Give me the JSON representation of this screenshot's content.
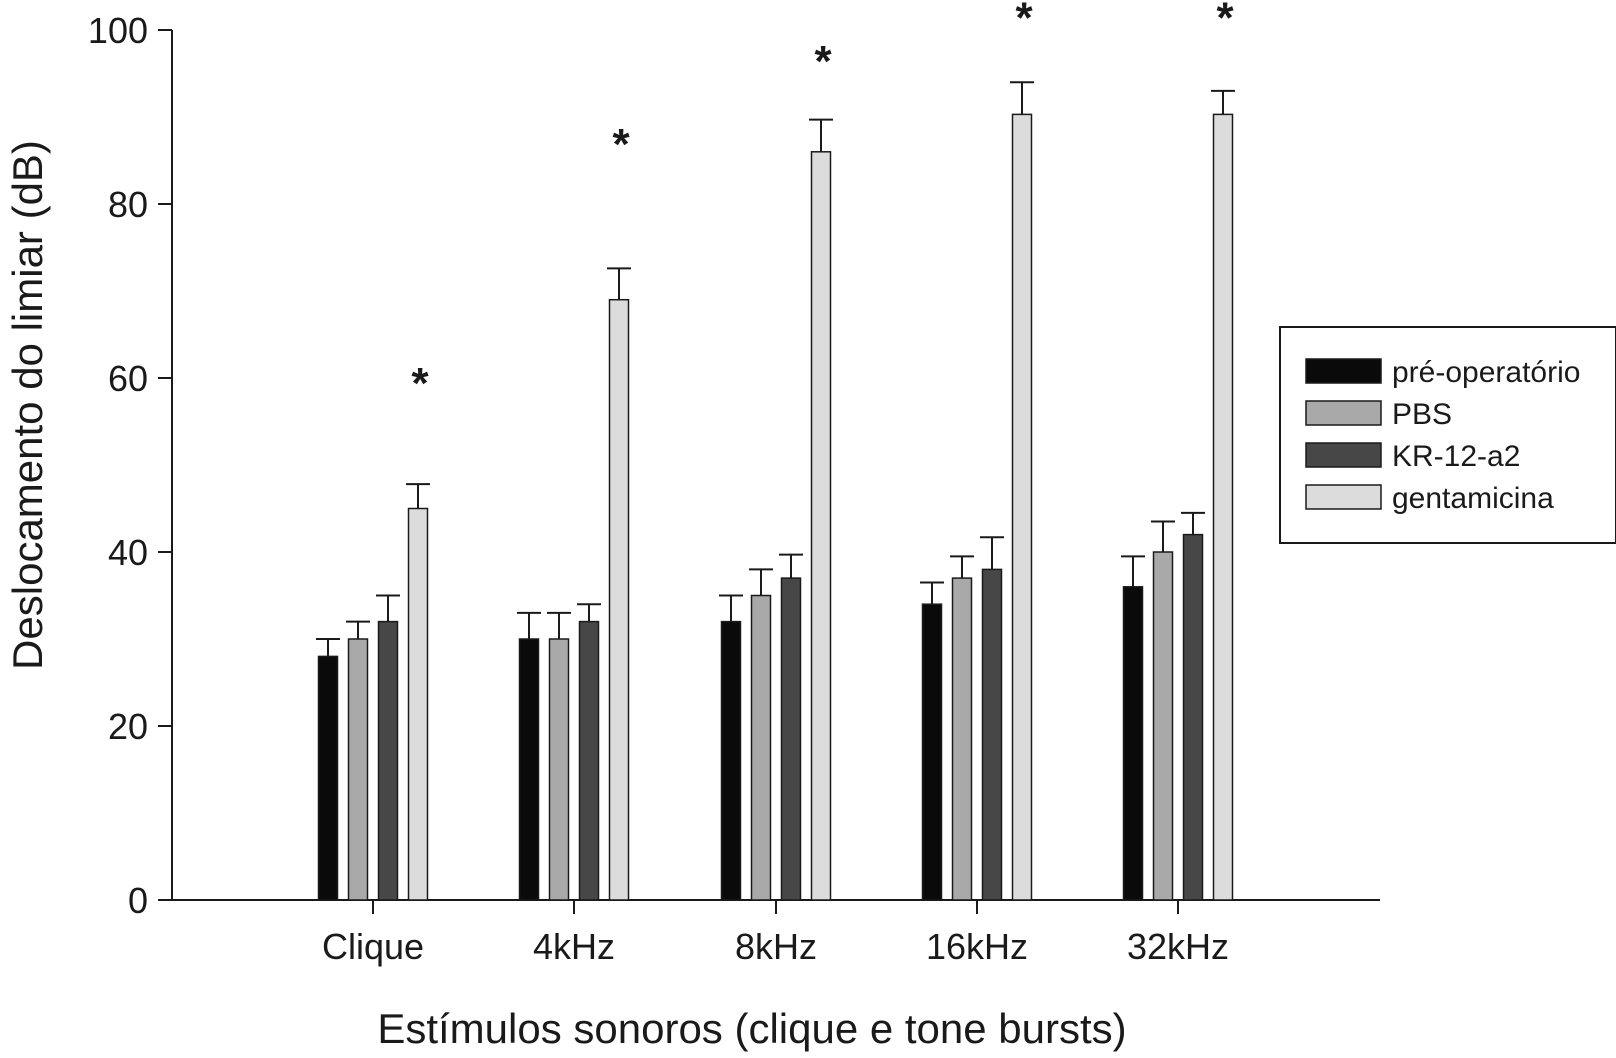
{
  "chart_data": {
    "type": "bar",
    "xlabel": "Estímulos sonoros (clique e tone bursts)",
    "ylabel": "Deslocamento do limiar (dB)",
    "ylim": [
      0,
      100
    ],
    "yticks": [
      0,
      20,
      40,
      60,
      80,
      100
    ],
    "categories": [
      "Clique",
      "4kHz",
      "8kHz",
      "16kHz",
      "32kHz"
    ],
    "series": [
      {
        "name": "pré-operatório",
        "color": "#0a0a0a",
        "values": [
          28,
          30,
          32,
          34,
          36
        ],
        "errors": [
          2,
          3,
          3,
          2.5,
          3.5
        ]
      },
      {
        "name": "PBS",
        "color": "#a9a9a9",
        "values": [
          30,
          30,
          35,
          37,
          40
        ],
        "errors": [
          2,
          3,
          3,
          2.5,
          3.5
        ]
      },
      {
        "name": "KR-12-a2",
        "color": "#474747",
        "values": [
          32,
          32,
          37,
          38,
          42
        ],
        "errors": [
          3,
          2,
          2.7,
          3.7,
          2.5
        ]
      },
      {
        "name": "gentamicina",
        "color": "#dcdcdc",
        "values": [
          45,
          69,
          86,
          90.3,
          90.3
        ],
        "errors": [
          2.8,
          3.6,
          3.7,
          3.7,
          2.7
        ]
      }
    ],
    "annotations": [
      {
        "text": "*",
        "category": "Clique",
        "series": "gentamicina",
        "y": 60
      },
      {
        "text": "*",
        "category": "4kHz",
        "series": "gentamicina",
        "y": 87.5
      },
      {
        "text": "*",
        "category": "8kHz",
        "series": "gentamicina",
        "y": 97
      },
      {
        "text": "*",
        "category": "16kHz",
        "series": "gentamicina",
        "y": 102
      },
      {
        "text": "*",
        "category": "32kHz",
        "series": "gentamicina",
        "y": 102
      }
    ],
    "legend_position": "right",
    "grid": false
  }
}
